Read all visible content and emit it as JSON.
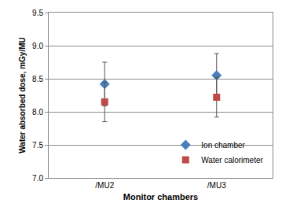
{
  "chart_data": {
    "type": "scatter",
    "categories": [
      "/MU2",
      "/MU3"
    ],
    "x_label": "Monitor chambers",
    "y_label": "Water absorbed dose, mGy/MU",
    "ylim": [
      7,
      9.5
    ],
    "yticks": [
      {
        "value": 7,
        "label": "7.0"
      },
      7.5,
      {
        "value": 8,
        "label": "8.0"
      },
      8.5,
      {
        "value": 9,
        "label": "9.0"
      },
      9.5
    ],
    "grid": true,
    "legend": "lower right",
    "series": [
      {
        "name": "Ion chamber",
        "color": "#4a7ebb",
        "marker": "diamond",
        "values": [
          8.42,
          8.55
        ],
        "errors": [
          0.33,
          0.33
        ]
      },
      {
        "name": "Water calorimeter",
        "color": "#be4b48",
        "marker": "square",
        "values": [
          8.15,
          8.22
        ],
        "errors": [
          0.3,
          0.3
        ]
      }
    ]
  }
}
